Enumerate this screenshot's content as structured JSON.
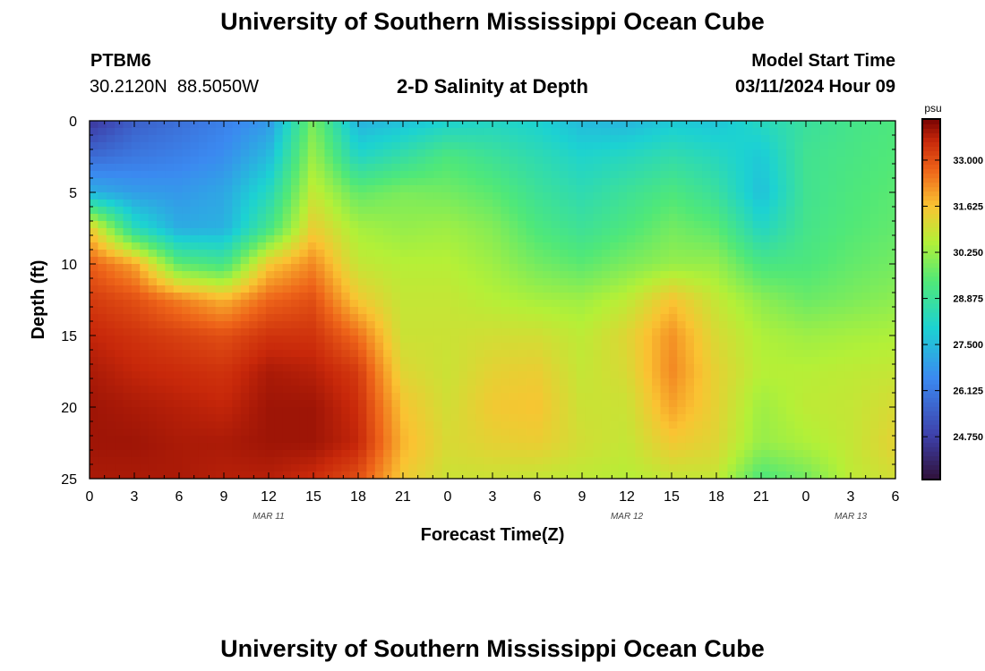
{
  "page": {
    "title": "University of Southern Mississippi Ocean Cube",
    "footer_title": "University of Southern Mississippi Ocean Cube"
  },
  "header": {
    "station_id": "PTBM6",
    "coordinates": "30.2120N  88.5050W",
    "plot_title": "2-D Salinity at Depth",
    "model_start_label": "Model Start Time",
    "model_start_value": "03/11/2024 Hour 09"
  },
  "chart_data": {
    "type": "heatmap",
    "title": "2-D Salinity at Depth",
    "xlabel": "Forecast Time(Z)",
    "ylabel": "Depth (ft)",
    "x_range_hours": [
      0,
      54
    ],
    "y_range_ft": [
      0,
      25
    ],
    "y_inverted": true,
    "x_tick_hours": [
      0,
      3,
      6,
      9,
      12,
      15,
      18,
      21,
      24,
      27,
      30,
      33,
      36,
      39,
      42,
      45,
      48,
      51,
      54
    ],
    "x_tick_labels": [
      "0",
      "3",
      "6",
      "9",
      "12",
      "15",
      "18",
      "21",
      "0",
      "3",
      "6",
      "9",
      "12",
      "15",
      "18",
      "21",
      "0",
      "3",
      "6"
    ],
    "y_tick_values": [
      0,
      5,
      10,
      15,
      20,
      25
    ],
    "y_tick_labels": [
      "0",
      "5",
      "10",
      "15",
      "20",
      "25"
    ],
    "date_labels": [
      {
        "hour": 12,
        "text": "MAR 11"
      },
      {
        "hour": 36,
        "text": "MAR 12"
      },
      {
        "hour": 51,
        "text": "MAR 13"
      }
    ],
    "colorbar": {
      "unit": "psu",
      "min": 23.5,
      "max": 34.2,
      "ticks": [
        33.0,
        31.625,
        30.25,
        28.875,
        27.5,
        26.125,
        24.75
      ],
      "tick_labels": [
        "33.000",
        "31.625",
        "30.250",
        "28.875",
        "27.500",
        "26.125",
        "24.750"
      ]
    },
    "grid_depths_ft": [
      0,
      2.5,
      5,
      7.5,
      10,
      12.5,
      15,
      17.5,
      20,
      22.5,
      25
    ],
    "grid_hours": [
      0,
      3,
      6,
      9,
      12,
      15,
      18,
      21,
      24,
      27,
      30,
      33,
      36,
      39,
      42,
      45,
      48,
      51,
      54
    ],
    "salinity_psu": [
      [
        24.5,
        25.5,
        25.9,
        26.3,
        26.8,
        29.9,
        27.3,
        27.6,
        28.0,
        28.2,
        28.0,
        27.5,
        27.4,
        27.8,
        27.7,
        28.3,
        28.8,
        29.1,
        29.3
      ],
      [
        25.8,
        26.1,
        26.3,
        26.6,
        27.5,
        30.3,
        28.2,
        28.7,
        29.3,
        28.9,
        28.5,
        28.1,
        28.3,
        28.6,
        28.3,
        27.8,
        29.0,
        29.2,
        29.4
      ],
      [
        27.3,
        26.9,
        26.8,
        27.1,
        28.3,
        30.8,
        29.6,
        29.9,
        29.8,
        29.5,
        28.9,
        28.5,
        28.9,
        29.3,
        28.8,
        27.6,
        29.0,
        29.3,
        29.5
      ],
      [
        31.5,
        28.4,
        27.2,
        27.3,
        29.1,
        31.4,
        30.4,
        30.2,
        30.3,
        30.0,
        29.3,
        28.9,
        29.3,
        29.8,
        29.5,
        28.2,
        29.1,
        29.4,
        29.6
      ],
      [
        32.8,
        32.0,
        29.5,
        29.1,
        31.5,
        32.3,
        30.8,
        30.6,
        30.6,
        30.3,
        29.8,
        29.5,
        29.9,
        30.2,
        30.2,
        29.2,
        29.3,
        29.6,
        29.8
      ],
      [
        33.3,
        33.0,
        32.4,
        31.8,
        32.7,
        33.0,
        31.5,
        30.8,
        30.8,
        30.6,
        30.4,
        30.3,
        30.7,
        31.6,
        30.8,
        30.1,
        29.7,
        29.9,
        30.1
      ],
      [
        33.6,
        33.4,
        33.2,
        33.0,
        33.4,
        33.4,
        32.6,
        30.9,
        30.9,
        31.0,
        31.0,
        30.7,
        31.2,
        32.2,
        31.1,
        30.5,
        30.3,
        30.4,
        30.5
      ],
      [
        33.8,
        33.6,
        33.5,
        33.4,
        33.8,
        33.7,
        33.3,
        31.2,
        30.9,
        31.3,
        31.4,
        30.8,
        31.1,
        32.3,
        31.3,
        30.6,
        30.6,
        30.7,
        30.8
      ],
      [
        33.9,
        33.8,
        33.7,
        33.6,
        33.9,
        33.9,
        33.5,
        31.6,
        31.0,
        31.5,
        31.6,
        30.9,
        30.9,
        32.0,
        31.3,
        30.3,
        30.7,
        30.8,
        31.1
      ],
      [
        33.9,
        33.9,
        33.8,
        33.8,
        33.9,
        33.9,
        33.6,
        31.8,
        31.1,
        31.3,
        31.4,
        31.0,
        30.8,
        31.5,
        31.2,
        30.2,
        30.5,
        30.8,
        31.3
      ],
      [
        33.8,
        33.8,
        33.8,
        33.7,
        33.7,
        33.5,
        33.0,
        31.5,
        30.9,
        30.9,
        30.8,
        30.7,
        30.6,
        30.8,
        30.8,
        29.3,
        29.8,
        30.7,
        31.0
      ]
    ]
  }
}
